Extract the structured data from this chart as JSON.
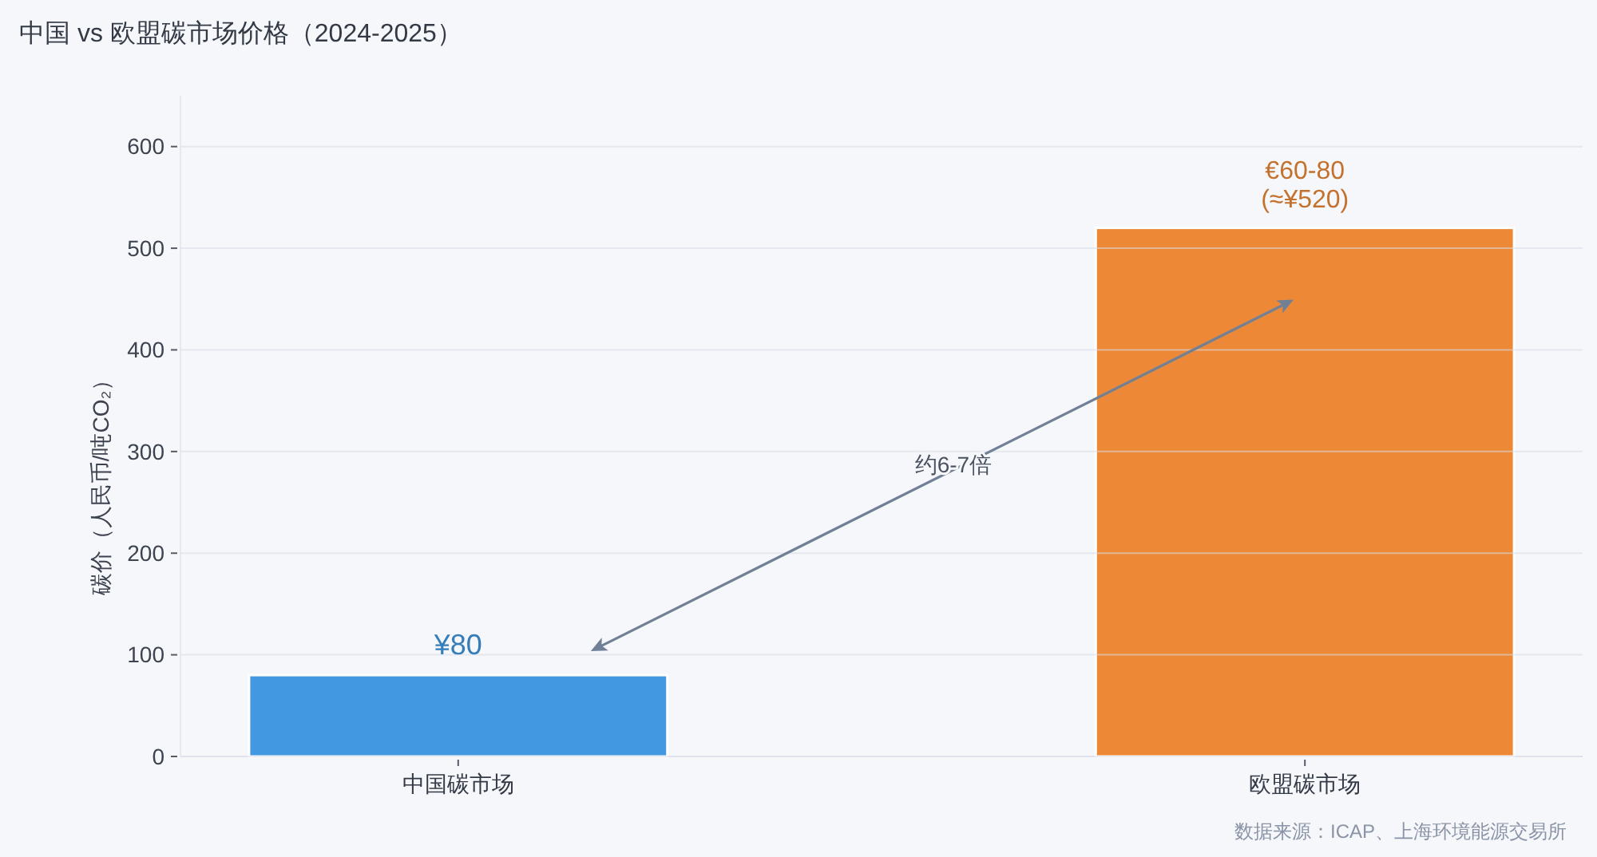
{
  "chart_data": {
    "type": "bar",
    "title": "中国 vs 欧盟碳市场价格（2024-2025）",
    "ylabel": "碳价（人民币/吨CO₂）",
    "categories": [
      "中国碳市场",
      "欧盟碳市场"
    ],
    "values": [
      80,
      520
    ],
    "colors": [
      "#4299e1",
      "#ed8936"
    ],
    "value_labels": [
      "¥80",
      "€60-80\n(≈¥520)"
    ],
    "ylim": [
      0,
      650
    ],
    "yticks": [
      0,
      100,
      200,
      300,
      400,
      500,
      600
    ],
    "grid": "y",
    "annotations": [
      "约6-7倍",
      "数据来源：ICAP、上海环境能源交易所"
    ]
  }
}
